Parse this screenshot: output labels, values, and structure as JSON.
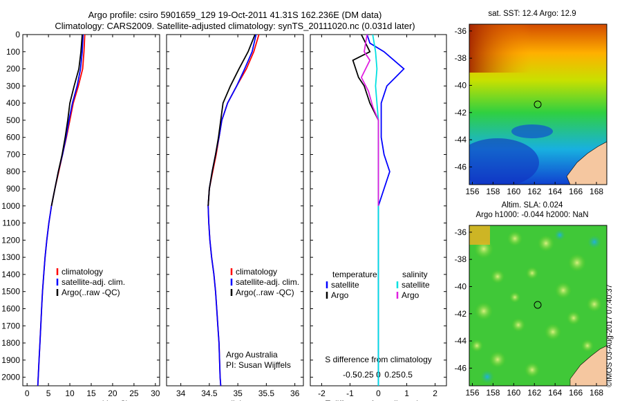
{
  "header": {
    "title_line1": "Argo profile: csiro 5901659_129 19-Oct-2011 41.31S 162.236E (DM data)",
    "title_line2": "Climatology: CARS2009. Satellite-adjusted climatology: synTS_20111020.nc (0.031d later)"
  },
  "maps": {
    "sst_title": "sat. SST: 12.4 Argo: 12.9",
    "sla_title_line1": "Altim. SLA: 0.024",
    "sla_title_line2": "Argo h1000: -0.044 h2000: NaN",
    "lat_ticks": [
      "-36",
      "-38",
      "-40",
      "-42",
      "-44",
      "-46"
    ],
    "lon_ticks": [
      "156",
      "158",
      "160",
      "162",
      "164",
      "166",
      "168"
    ],
    "land_color": "#f5c7a0"
  },
  "footer": {
    "stamp": "©IMOS 03-Aug-2017 07:40:37",
    "credit_line1": "Argo Australia",
    "credit_line2": "PI: Susan Wijffels"
  },
  "chart_data": [
    {
      "type": "line",
      "xlabel": "temperature (deg C)",
      "ylabel": "",
      "xlim": [
        -1,
        31
      ],
      "ylim": [
        2050,
        0
      ],
      "xticks": [
        0,
        5,
        10,
        15,
        20,
        25,
        30
      ],
      "yticks": [
        0,
        100,
        200,
        300,
        400,
        500,
        600,
        700,
        800,
        900,
        1000,
        1100,
        1200,
        1300,
        1400,
        1500,
        1600,
        1700,
        1800,
        1900,
        2000
      ],
      "legend": [
        "climatology",
        "satellite-adj. clim.",
        "Argo(..raw -QC)"
      ],
      "series": [
        {
          "name": "climatology",
          "color": "#ff0000",
          "points": [
            [
              13.5,
              0
            ],
            [
              13.3,
              100
            ],
            [
              13.0,
              200
            ],
            [
              12.0,
              300
            ],
            [
              10.8,
              400
            ],
            [
              10.0,
              500
            ],
            [
              9.2,
              600
            ],
            [
              8.3,
              700
            ],
            [
              7.4,
              800
            ],
            [
              6.5,
              900
            ],
            [
              5.7,
              1000
            ],
            [
              5.1,
              1100
            ],
            [
              4.6,
              1200
            ],
            [
              4.2,
              1300
            ],
            [
              3.9,
              1400
            ],
            [
              3.6,
              1500
            ],
            [
              3.4,
              1600
            ],
            [
              3.2,
              1700
            ],
            [
              3.0,
              1800
            ],
            [
              2.8,
              1900
            ],
            [
              2.6,
              2000
            ],
            [
              2.5,
              2050
            ]
          ]
        },
        {
          "name": "satellite-adj. clim.",
          "color": "#0000ff",
          "points": [
            [
              13.1,
              0
            ],
            [
              12.9,
              100
            ],
            [
              12.5,
              200
            ],
            [
              11.7,
              300
            ],
            [
              10.6,
              400
            ],
            [
              9.8,
              500
            ],
            [
              9.1,
              600
            ],
            [
              8.3,
              700
            ],
            [
              7.3,
              800
            ],
            [
              6.5,
              900
            ],
            [
              5.7,
              1000
            ],
            [
              5.1,
              1100
            ],
            [
              4.6,
              1200
            ],
            [
              4.2,
              1300
            ],
            [
              3.9,
              1400
            ],
            [
              3.6,
              1500
            ],
            [
              3.4,
              1600
            ],
            [
              3.2,
              1700
            ],
            [
              3.0,
              1800
            ],
            [
              2.8,
              1900
            ],
            [
              2.6,
              2000
            ],
            [
              2.5,
              2050
            ]
          ]
        },
        {
          "name": "Argo(..raw -QC)",
          "color": "#000000",
          "points": [
            [
              12.9,
              0
            ],
            [
              12.6,
              100
            ],
            [
              12.1,
              200
            ],
            [
              11.0,
              300
            ],
            [
              10.0,
              400
            ],
            [
              9.5,
              500
            ],
            [
              8.9,
              600
            ],
            [
              8.2,
              700
            ],
            [
              7.3,
              800
            ],
            [
              6.5,
              900
            ],
            [
              5.7,
              1000
            ]
          ]
        }
      ]
    },
    {
      "type": "line",
      "xlabel": "salinity",
      "ylabel": "",
      "xlim": [
        33.75,
        36.15
      ],
      "ylim": [
        2050,
        0
      ],
      "xticks": [
        34,
        34.5,
        35,
        35.5,
        36
      ],
      "yticks": [
        0,
        100,
        200,
        300,
        400,
        500,
        600,
        700,
        800,
        900,
        1000,
        1100,
        1200,
        1300,
        1400,
        1500,
        1600,
        1700,
        1800,
        1900,
        2000
      ],
      "legend": [
        "climatology",
        "satellite-adj. clim.",
        "Argo(..raw -QC)"
      ],
      "series": [
        {
          "name": "climatology",
          "color": "#ff0000",
          "points": [
            [
              35.37,
              0
            ],
            [
              35.28,
              100
            ],
            [
              35.15,
              200
            ],
            [
              34.98,
              300
            ],
            [
              34.82,
              400
            ],
            [
              34.72,
              500
            ],
            [
              34.67,
              600
            ],
            [
              34.62,
              700
            ],
            [
              34.56,
              800
            ],
            [
              34.5,
              900
            ],
            [
              34.48,
              1000
            ],
            [
              34.49,
              1100
            ],
            [
              34.51,
              1200
            ],
            [
              34.54,
              1300
            ],
            [
              34.58,
              1400
            ],
            [
              34.61,
              1500
            ],
            [
              34.63,
              1600
            ],
            [
              34.65,
              1700
            ],
            [
              34.67,
              1800
            ],
            [
              34.68,
              1900
            ],
            [
              34.69,
              2000
            ],
            [
              34.7,
              2050
            ]
          ]
        },
        {
          "name": "satellite-adj. clim.",
          "color": "#0000ff",
          "points": [
            [
              35.32,
              0
            ],
            [
              35.25,
              100
            ],
            [
              35.12,
              200
            ],
            [
              34.98,
              300
            ],
            [
              34.82,
              400
            ],
            [
              34.72,
              500
            ],
            [
              34.67,
              600
            ],
            [
              34.61,
              700
            ],
            [
              34.55,
              800
            ],
            [
              34.5,
              900
            ],
            [
              34.48,
              1000
            ],
            [
              34.49,
              1100
            ],
            [
              34.51,
              1200
            ],
            [
              34.54,
              1300
            ],
            [
              34.58,
              1400
            ],
            [
              34.61,
              1500
            ],
            [
              34.63,
              1600
            ],
            [
              34.65,
              1700
            ],
            [
              34.67,
              1800
            ],
            [
              34.68,
              1900
            ],
            [
              34.69,
              2000
            ],
            [
              34.7,
              2050
            ]
          ]
        },
        {
          "name": "Argo(..raw -QC)",
          "color": "#000000",
          "points": [
            [
              35.3,
              0
            ],
            [
              35.18,
              100
            ],
            [
              35.02,
              200
            ],
            [
              34.87,
              300
            ],
            [
              34.74,
              400
            ],
            [
              34.7,
              500
            ],
            [
              34.66,
              600
            ],
            [
              34.61,
              700
            ],
            [
              34.55,
              800
            ],
            [
              34.5,
              900
            ],
            [
              34.48,
              1000
            ]
          ]
        }
      ]
    },
    {
      "type": "line",
      "xlabel": "T difference from climatology",
      "xlabel_top": "S difference from climatology",
      "ylabel": "",
      "xlim": [
        -2.4,
        2.4
      ],
      "ylim": [
        2050,
        0
      ],
      "xticks": [
        -2,
        -1,
        0,
        1,
        2
      ],
      "xtick_labels_top": [
        "-0.5",
        "-0.25",
        "0",
        "0.25",
        "0.5"
      ],
      "yticks": [
        0,
        100,
        200,
        300,
        400,
        500,
        600,
        700,
        800,
        900,
        1000,
        1100,
        1200,
        1300,
        1400,
        1500,
        1600,
        1700,
        1800,
        1900,
        2000
      ],
      "legend_temperature_title": "temperature",
      "legend_salinity_title": "salinity",
      "legend": [
        "satellite",
        "Argo",
        "satellite",
        "Argo"
      ],
      "series": [
        {
          "name": "satellite",
          "color": "#0000ff",
          "points": [
            [
              -0.4,
              0
            ],
            [
              -0.3,
              50
            ],
            [
              0.2,
              100
            ],
            [
              0.9,
              200
            ],
            [
              0.6,
              250
            ],
            [
              0.3,
              300
            ],
            [
              0.1,
              400
            ],
            [
              0.1,
              500
            ],
            [
              0.1,
              600
            ],
            [
              0.2,
              700
            ],
            [
              0.4,
              800
            ],
            [
              0.2,
              900
            ],
            [
              0.0,
              1000
            ],
            [
              0.0,
              1100
            ],
            [
              0.0,
              1500
            ],
            [
              0.0,
              2000
            ],
            [
              0.0,
              2050
            ]
          ]
        },
        {
          "name": "Argo",
          "color": "#000000",
          "points": [
            [
              -0.6,
              0
            ],
            [
              -0.3,
              100
            ],
            [
              -0.9,
              150
            ],
            [
              -0.7,
              250
            ],
            [
              -0.5,
              300
            ],
            [
              -0.3,
              400
            ],
            [
              0.0,
              500
            ],
            [
              0.0,
              1000
            ]
          ]
        },
        {
          "name": "satellite",
          "color": "#00e0e0",
          "points": [
            [
              -0.2,
              0
            ],
            [
              -0.1,
              100
            ],
            [
              -0.05,
              200
            ],
            [
              -0.1,
              300
            ],
            [
              -0.05,
              400
            ],
            [
              0.0,
              500
            ],
            [
              0.0,
              1000
            ],
            [
              0.0,
              1500
            ],
            [
              0.0,
              2000
            ],
            [
              0.0,
              2050
            ]
          ]
        },
        {
          "name": "Argo",
          "color": "#e020e0",
          "points": [
            [
              -0.4,
              0
            ],
            [
              -0.5,
              100
            ],
            [
              -0.3,
              150
            ],
            [
              -0.6,
              250
            ],
            [
              -0.35,
              330
            ],
            [
              -0.2,
              420
            ],
            [
              0.0,
              500
            ],
            [
              0.0,
              1000
            ]
          ]
        }
      ]
    }
  ]
}
